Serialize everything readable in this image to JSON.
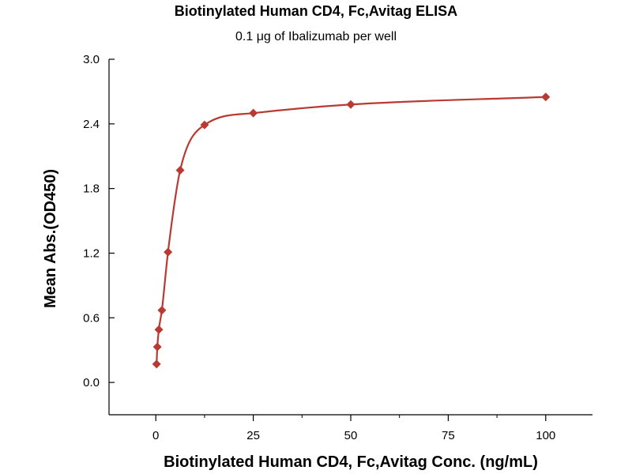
{
  "chart_data": {
    "type": "scatter",
    "title": "Biotinylated Human CD4, Fc,Avitag ELISA",
    "subtitle": "0.1 μg of Ibalizumab per well",
    "xlabel": "Biotinylated Human CD4, Fc,Avitag Conc. (ng/mL)",
    "ylabel": "Mean Abs.(OD450)",
    "xlim": [
      -12,
      112
    ],
    "ylim": [
      -0.3,
      3.0
    ],
    "x_ticks": [
      0,
      25,
      50,
      75,
      100
    ],
    "y_ticks": [
      0.0,
      0.6,
      1.2,
      1.8,
      2.4,
      3.0
    ],
    "x_tick_labels": [
      "0",
      "25",
      "50",
      "75",
      "100"
    ],
    "y_tick_labels": [
      "0.0",
      "0.6",
      "1.2",
      "1.8",
      "2.4",
      "3.0"
    ],
    "grid": false,
    "series": [
      {
        "color": "#b83a33",
        "marker": "diamond",
        "fit_curve": true,
        "x": [
          0.195,
          0.39,
          0.78,
          1.56,
          3.125,
          6.25,
          12.5,
          25,
          50,
          100
        ],
        "y": [
          0.17,
          0.33,
          0.49,
          0.67,
          1.21,
          1.97,
          2.39,
          2.5,
          2.58,
          2.65
        ]
      }
    ]
  }
}
